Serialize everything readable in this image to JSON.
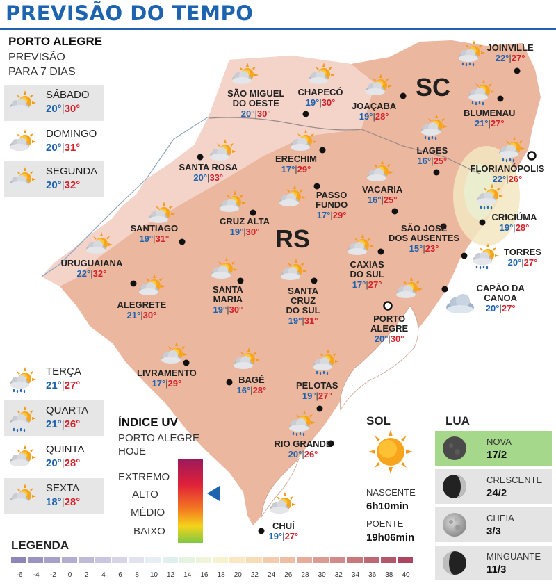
{
  "title": "PREVISÃO DO TEMPO",
  "forecast": {
    "city": "PORTO ALEGRE",
    "line1": "PREVISÃO",
    "line2": "PARA 7 DIAS",
    "days": [
      {
        "name": "SÁBADO",
        "min": "20°",
        "max": "30°",
        "icon": "partly-cloudy-sun-icon",
        "shaded": true
      },
      {
        "name": "DOMINGO",
        "min": "20°",
        "max": "31°",
        "icon": "partly-cloudy-sun-icon",
        "shaded": false
      },
      {
        "name": "SEGUNDA",
        "min": "20°",
        "max": "32°",
        "icon": "partly-cloudy-sun-icon",
        "shaded": true
      },
      {
        "name": "TERÇA",
        "min": "21°",
        "max": "27°",
        "icon": "sun-cloud-rain-icon",
        "shaded": false
      },
      {
        "name": "QUARTA",
        "min": "21°",
        "max": "26°",
        "icon": "sun-cloud-rain-icon",
        "shaded": true
      },
      {
        "name": "QUINTA",
        "min": "20°",
        "max": "28°",
        "icon": "partly-cloudy-sun-icon",
        "shaded": false
      },
      {
        "name": "SEXTA",
        "min": "18°",
        "max": "28°",
        "icon": "partly-cloudy-sun-icon",
        "shaded": true
      }
    ],
    "separator": "|"
  },
  "map": {
    "state_labels": {
      "sc": "SC",
      "rs": "RS"
    },
    "colors": {
      "land": "#ecb79f",
      "north": "#f3d0c6",
      "ocean": "#ffffff",
      "min": "#1e63b0",
      "max": "#d3202a"
    },
    "cities": [
      {
        "id": "sao-miguel-do-oeste",
        "name": [
          "SÃO MIGUEL",
          "DO OESTE"
        ],
        "min": "20°",
        "max": "30°",
        "icon": "partly-cloudy-sun-icon"
      },
      {
        "id": "chapeco",
        "name": [
          "CHAPECÓ"
        ],
        "min": "19°",
        "max": "30°",
        "icon": "partly-cloudy-sun-icon"
      },
      {
        "id": "joacaba",
        "name": [
          "JOAÇABA"
        ],
        "min": "19°",
        "max": "28°",
        "icon": "partly-cloudy-sun-icon"
      },
      {
        "id": "joinville",
        "name": [
          "JOINVILLE"
        ],
        "min": "22°",
        "max": "27°",
        "icon": "sun-cloud-rain-icon"
      },
      {
        "id": "blumenau",
        "name": [
          "BLUMENAU"
        ],
        "min": "21°",
        "max": "27°",
        "icon": "sun-cloud-rain-icon"
      },
      {
        "id": "lages",
        "name": [
          "LAGES"
        ],
        "min": "16°",
        "max": "25°",
        "icon": "sun-cloud-rain-icon"
      },
      {
        "id": "florianopolis",
        "name": [
          "FLORIANÓPOLIS"
        ],
        "min": "22°",
        "max": "26°",
        "icon": "sun-cloud-rain-icon"
      },
      {
        "id": "santa-rosa",
        "name": [
          "SANTA ROSA"
        ],
        "min": "20°",
        "max": "33°",
        "icon": "partly-cloudy-sun-icon"
      },
      {
        "id": "erechim",
        "name": [
          "ERECHIM"
        ],
        "min": "17°",
        "max": "29°",
        "icon": "partly-cloudy-sun-icon"
      },
      {
        "id": "vacaria",
        "name": [
          "VACARIA"
        ],
        "min": "16°",
        "max": "25°",
        "icon": "partly-cloudy-sun-icon"
      },
      {
        "id": "passo-fundo",
        "name": [
          "PASSO",
          "FUNDO"
        ],
        "min": "17°",
        "max": "29°",
        "icon": "partly-cloudy-sun-icon"
      },
      {
        "id": "cruz-alta",
        "name": [
          "CRUZ ALTA"
        ],
        "min": "19°",
        "max": "30°",
        "icon": "partly-cloudy-sun-icon"
      },
      {
        "id": "santiago",
        "name": [
          "SANTIAGO"
        ],
        "min": "19°",
        "max": "31°",
        "icon": "partly-cloudy-sun-icon"
      },
      {
        "id": "criciuma",
        "name": [
          "CRICIÚMA"
        ],
        "min": "19°",
        "max": "28°",
        "icon": "sun-cloud-rain-icon"
      },
      {
        "id": "sao-jose-dos-ausentes",
        "name": [
          "SÃO JOSÉ",
          "DOS AUSENTES"
        ],
        "min": "15°",
        "max": "23°",
        "icon": "partly-cloudy-sun-icon"
      },
      {
        "id": "torres",
        "name": [
          "TORRES"
        ],
        "min": "20°",
        "max": "27°",
        "icon": "sun-cloud-rain-icon"
      },
      {
        "id": "uruguaiana",
        "name": [
          "URUGUAIANA"
        ],
        "min": "22°",
        "max": "32°",
        "icon": "partly-cloudy-sun-icon"
      },
      {
        "id": "caxias-do-sul",
        "name": [
          "CAXIAS",
          "DO SUL"
        ],
        "min": "17°",
        "max": "27°",
        "icon": "partly-cloudy-sun-icon"
      },
      {
        "id": "alegrete",
        "name": [
          "ALEGRETE"
        ],
        "min": "21°",
        "max": "30°",
        "icon": "partly-cloudy-sun-icon"
      },
      {
        "id": "santa-maria",
        "name": [
          "SANTA",
          "MARIA"
        ],
        "min": "19°",
        "max": "30°",
        "icon": "partly-cloudy-sun-icon"
      },
      {
        "id": "santa-cruz-do-sul",
        "name": [
          "SANTA",
          "CRUZ",
          "DO SUL"
        ],
        "min": "19°",
        "max": "31°",
        "icon": "partly-cloudy-sun-icon"
      },
      {
        "id": "capao-da-canoa",
        "name": [
          "CAPÃO DA",
          "CANOA"
        ],
        "min": "20°",
        "max": "27°",
        "icon": "cloud-icon"
      },
      {
        "id": "porto-alegre",
        "name": [
          "PORTO",
          "ALEGRE"
        ],
        "min": "20°",
        "max": "30°",
        "icon": "partly-cloudy-sun-icon"
      },
      {
        "id": "livramento",
        "name": [
          "LIVRAMENTO"
        ],
        "min": "17°",
        "max": "29°",
        "icon": "partly-cloudy-sun-icon"
      },
      {
        "id": "bage",
        "name": [
          "BAGÉ"
        ],
        "min": "16°",
        "max": "28°",
        "icon": "partly-cloudy-sun-icon"
      },
      {
        "id": "pelotas",
        "name": [
          "PELOTAS"
        ],
        "min": "19°",
        "max": "27°",
        "icon": "sun-cloud-rain-icon"
      },
      {
        "id": "rio-grande",
        "name": [
          "RIO GRANDE"
        ],
        "min": "20°",
        "max": "26°",
        "icon": "sun-cloud-rain-icon"
      },
      {
        "id": "chui",
        "name": [
          "CHUÍ"
        ],
        "min": "19°",
        "max": "27°",
        "icon": "partly-cloudy-sun-icon"
      }
    ]
  },
  "uv": {
    "title": "ÍNDICE UV",
    "line1": "PORTO ALEGRE",
    "line2": "HOJE",
    "levels": [
      "EXTREMO",
      "ALTO",
      "MÉDIO",
      "BAIXO"
    ],
    "current": "ALTO"
  },
  "sun": {
    "title": "SOL",
    "rise_label": "NASCENTE",
    "rise": "6h10min",
    "set_label": "POENTE",
    "set": "19h06min"
  },
  "moon": {
    "title": "LUA",
    "phases": [
      {
        "name": "NOVA",
        "date": "17/2",
        "active": true,
        "icon": "new-moon-icon"
      },
      {
        "name": "CRESCENTE",
        "date": "24/2",
        "active": false,
        "icon": "first-quarter-moon-icon"
      },
      {
        "name": "CHEIA",
        "date": "3/3",
        "active": false,
        "icon": "full-moon-icon"
      },
      {
        "name": "MINGUANTE",
        "date": "11/3",
        "active": false,
        "icon": "last-quarter-moon-icon"
      }
    ]
  },
  "legend": {
    "title": "LEGENDA",
    "ticks": [
      "-6",
      "-4",
      "-2",
      "0",
      "2",
      "4",
      "6",
      "8",
      "10",
      "12",
      "14",
      "16",
      "18",
      "20",
      "22",
      "24",
      "26",
      "28",
      "30",
      "32",
      "34",
      "36",
      "38",
      "40"
    ],
    "colors": [
      "#8f86b8",
      "#9b94c0",
      "#a7a0c8",
      "#b3add0",
      "#bfbad8",
      "#cbc6e0",
      "#d7d4e8",
      "#e3e2f0",
      "#e6eef3",
      "#dff0ee",
      "#e6f2e2",
      "#eef3d9",
      "#f6f2cf",
      "#fbe8c2",
      "#f8dcb8",
      "#f3ccb0",
      "#eebda6",
      "#e6ac9c",
      "#dc9b92",
      "#d38a88",
      "#c9797e",
      "#bf6874",
      "#b5576a",
      "#ab4660"
    ]
  }
}
